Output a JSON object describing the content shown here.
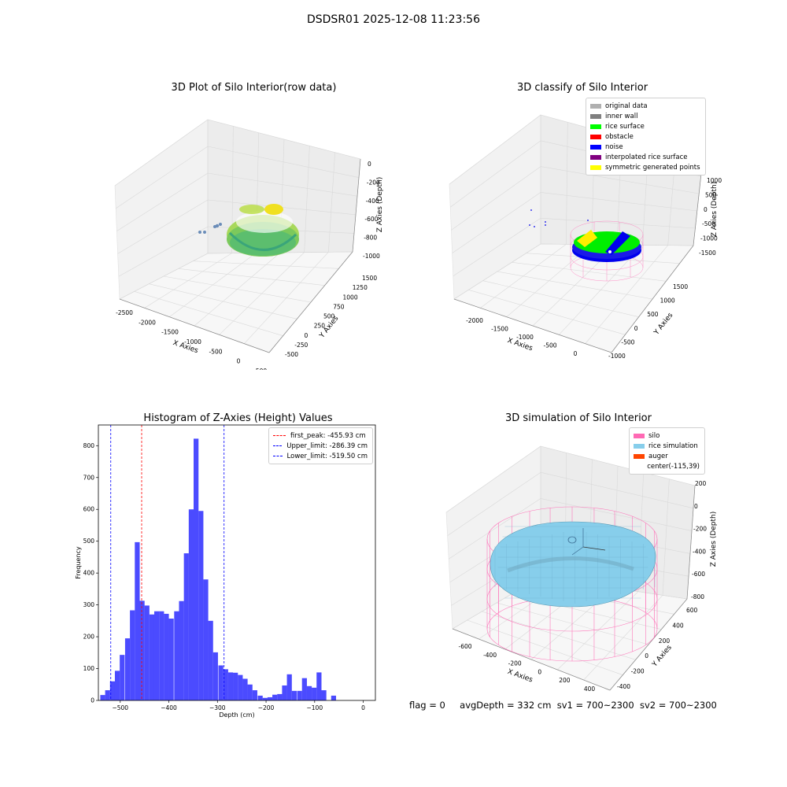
{
  "figure_title": "DSDSR01 2025-12-08 11:23:56",
  "colors": {
    "hist_bar": "#4b4bff",
    "red_line": "#ff0000",
    "blue_line": "#0000ff",
    "silo": "#ff69b4",
    "rice_sim": "#87ceeb",
    "auger": "#ff4500",
    "grid": "#d9d9d9",
    "pane": "#f2f2f2"
  },
  "panels": {
    "raw": {
      "title": "3D Plot of Silo Interior(row data)",
      "x_label": "X Axies",
      "y_label": "Y Axies",
      "z_label": "Z Axies (Depth)",
      "x_ticks": [
        "-2500",
        "-2000",
        "-1500",
        "-1000",
        "-500",
        "0",
        "500"
      ],
      "y_ticks": [
        "-500",
        "-250",
        "0",
        "250",
        "500",
        "750",
        "1000",
        "1250",
        "1500"
      ],
      "z_ticks": [
        "0",
        "-200",
        "-400",
        "-600",
        "-800",
        "-1000"
      ]
    },
    "classify": {
      "title": "3D classify of Silo Interior",
      "x_label": "X Axies",
      "y_label": "Y Axies",
      "z_label": "Z Axies (Depth)",
      "x_ticks": [
        "-2000",
        "-1500",
        "-1000",
        "-500",
        "0"
      ],
      "y_ticks": [
        "-1000",
        "-500",
        "0",
        "500",
        "1000",
        "1500"
      ],
      "z_ticks": [
        "1000",
        "500",
        "0",
        "-500",
        "-1000",
        "-1500"
      ],
      "legend": [
        {
          "label": "original data",
          "color": "#b0b0b0"
        },
        {
          "label": "inner wall",
          "color": "#808080"
        },
        {
          "label": "rice surface",
          "color": "#00ff00"
        },
        {
          "label": "obstacle",
          "color": "#ff0000"
        },
        {
          "label": "noise",
          "color": "#0000ff"
        },
        {
          "label": "interpolated rice surface",
          "color": "#800080"
        },
        {
          "label": "symmetric generated points",
          "color": "#ffff00"
        }
      ]
    },
    "sim": {
      "title": "3D simulation of Silo Interior",
      "x_label": "X Axies",
      "y_label": "Y Axies",
      "z_label": "Z Axies (Depth)",
      "x_ticks": [
        "-600",
        "-400",
        "-200",
        "0",
        "200",
        "400"
      ],
      "y_ticks": [
        "-400",
        "-200",
        "0",
        "200",
        "400",
        "600"
      ],
      "z_ticks": [
        "200",
        "0",
        "-200",
        "-400",
        "-600",
        "-800"
      ],
      "legend": [
        {
          "label": "silo",
          "color": "#ff69b4"
        },
        {
          "label": "rice simulation",
          "color": "#87ceeb"
        },
        {
          "label": "auger",
          "color": "#ff4500"
        },
        {
          "label": "center(-115,39)",
          "color": ""
        }
      ]
    }
  },
  "chart_data": {
    "type": "bar",
    "title": "Histogram of Z-Axies (Height) Values",
    "xlabel": "Depth (cm)",
    "ylabel": "Frequency",
    "xlim": [
      -545,
      25
    ],
    "ylim": [
      0,
      865
    ],
    "xticks": [
      -500,
      -400,
      -300,
      -200,
      -100,
      0
    ],
    "yticks": [
      0,
      100,
      200,
      300,
      400,
      500,
      600,
      700,
      800
    ],
    "bin_width": 10.1,
    "bins": [
      {
        "x": -536,
        "count": 17
      },
      {
        "x": -526,
        "count": 32
      },
      {
        "x": -516,
        "count": 60
      },
      {
        "x": -506,
        "count": 93
      },
      {
        "x": -496,
        "count": 143
      },
      {
        "x": -485,
        "count": 195
      },
      {
        "x": -475,
        "count": 283
      },
      {
        "x": -465,
        "count": 497
      },
      {
        "x": -455,
        "count": 313
      },
      {
        "x": -445,
        "count": 298
      },
      {
        "x": -435,
        "count": 270
      },
      {
        "x": -425,
        "count": 280
      },
      {
        "x": -415,
        "count": 280
      },
      {
        "x": -405,
        "count": 272
      },
      {
        "x": -395,
        "count": 257
      },
      {
        "x": -384,
        "count": 280
      },
      {
        "x": -374,
        "count": 312
      },
      {
        "x": -364,
        "count": 462
      },
      {
        "x": -354,
        "count": 600
      },
      {
        "x": -344,
        "count": 822
      },
      {
        "x": -334,
        "count": 595
      },
      {
        "x": -324,
        "count": 380
      },
      {
        "x": -314,
        "count": 250
      },
      {
        "x": -304,
        "count": 151
      },
      {
        "x": -293,
        "count": 110
      },
      {
        "x": -283,
        "count": 98
      },
      {
        "x": -273,
        "count": 88
      },
      {
        "x": -263,
        "count": 87
      },
      {
        "x": -253,
        "count": 80
      },
      {
        "x": -243,
        "count": 68
      },
      {
        "x": -233,
        "count": 50
      },
      {
        "x": -223,
        "count": 32
      },
      {
        "x": -212,
        "count": 15
      },
      {
        "x": -202,
        "count": 8
      },
      {
        "x": -192,
        "count": 10
      },
      {
        "x": -182,
        "count": 18
      },
      {
        "x": -172,
        "count": 20
      },
      {
        "x": -162,
        "count": 47
      },
      {
        "x": -152,
        "count": 82
      },
      {
        "x": -142,
        "count": 30
      },
      {
        "x": -131,
        "count": 30
      },
      {
        "x": -121,
        "count": 70
      },
      {
        "x": -111,
        "count": 45
      },
      {
        "x": -101,
        "count": 40
      },
      {
        "x": -91,
        "count": 88
      },
      {
        "x": -81,
        "count": 32
      },
      {
        "x": -71,
        "count": 0
      },
      {
        "x": -61,
        "count": 15
      }
    ],
    "vlines": [
      {
        "label": "first_peak: -455.93 cm",
        "x": -455.93,
        "color": "#ff0000"
      },
      {
        "label": "Upper_limit: -286.39 cm",
        "x": -286.39,
        "color": "#0000ff"
      },
      {
        "label": "Lower_limit: -519.50 cm",
        "x": -519.5,
        "color": "#0000ff"
      }
    ],
    "legend_position": "upper-right",
    "grid": false
  },
  "status": {
    "flag": "flag = 0",
    "avg_depth": "avgDepth = 332 cm",
    "sv1": "sv1 = 700~2300",
    "sv2": "sv2 = 700~2300"
  }
}
